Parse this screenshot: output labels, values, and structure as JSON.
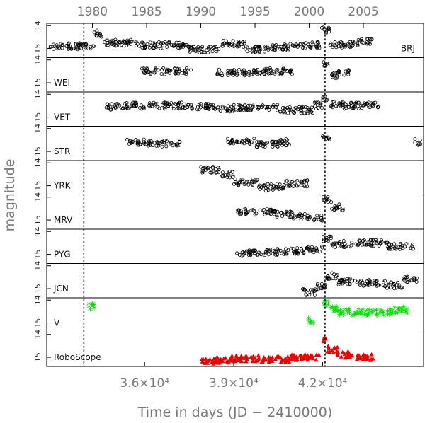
{
  "chart_data": {
    "type": "scatter",
    "xlabel": "Time in days (JD − 2410000)",
    "ylabel": "magnitude",
    "xlim": [
      32700,
      45400
    ],
    "top_axis_ticks": [
      {
        "label": "1980",
        "jd": 34239
      },
      {
        "label": "1985",
        "jd": 36066
      },
      {
        "label": "1990",
        "jd": 37892
      },
      {
        "label": "1995",
        "jd": 39719
      },
      {
        "label": "2000",
        "jd": 41545
      },
      {
        "label": "2005",
        "jd": 43372
      }
    ],
    "bottom_axis_ticks": [
      {
        "label": "3.6×10⁴",
        "value": 36000
      },
      {
        "label": "3.9×10⁴",
        "value": 39000
      },
      {
        "label": "4.2×10⁴",
        "value": 42000
      }
    ],
    "reference_lines_jd": [
      33950,
      42080
    ],
    "panel_ylim": [
      15.4,
      13.9
    ],
    "panels": [
      {
        "label": "BRJ",
        "label_pos": "right",
        "ytick_labels": [
          "14",
          "15"
        ],
        "marker": "circle",
        "color": "#000000",
        "segments": [
          [
            32800,
            34300,
            14.9
          ],
          [
            34300,
            34600,
            14.35
          ],
          [
            34600,
            35800,
            14.75
          ],
          [
            35800,
            36500,
            14.85
          ],
          [
            36500,
            37500,
            14.85
          ],
          [
            37500,
            38500,
            15.05
          ],
          [
            38500,
            39400,
            14.8
          ],
          [
            39400,
            40200,
            15.05
          ],
          [
            40200,
            40900,
            14.95
          ],
          [
            40900,
            41900,
            14.85
          ],
          [
            41950,
            42250,
            14.2
          ],
          [
            42250,
            43000,
            14.85
          ],
          [
            43000,
            43300,
            14.75
          ],
          [
            43300,
            43700,
            14.7
          ]
        ]
      },
      {
        "label": "WEI",
        "label_pos": "left",
        "ytick_labels": [
          "14",
          "15"
        ],
        "marker": "circle",
        "color": "#000000",
        "segments": [
          [
            35900,
            36900,
            14.5
          ],
          [
            37000,
            37600,
            14.5
          ],
          [
            38400,
            39400,
            14.55
          ],
          [
            39400,
            40000,
            14.55
          ],
          [
            40000,
            41000,
            14.5
          ],
          [
            42000,
            42200,
            14.2
          ],
          [
            42200,
            42500,
            14.7
          ],
          [
            42500,
            42900,
            14.55
          ]
        ]
      },
      {
        "label": "VET",
        "label_pos": "left",
        "ytick_labels": [
          "14",
          "15"
        ],
        "marker": "circle",
        "color": "#000000",
        "segments": [
          [
            34700,
            35300,
            14.55
          ],
          [
            35300,
            37500,
            14.5
          ],
          [
            37500,
            38300,
            14.55
          ],
          [
            38300,
            39000,
            14.65
          ],
          [
            39000,
            40500,
            14.6
          ],
          [
            40500,
            41700,
            14.7
          ],
          [
            41700,
            42000,
            14.5
          ],
          [
            42000,
            42200,
            14.15
          ],
          [
            42200,
            42700,
            14.45
          ],
          [
            42700,
            43400,
            14.5
          ],
          [
            43400,
            43900,
            14.45
          ]
        ]
      },
      {
        "label": "STR",
        "label_pos": "left",
        "ytick_labels": [
          "14",
          "15"
        ],
        "marker": "circle",
        "color": "#000000",
        "segments": [
          [
            35400,
            36100,
            14.6
          ],
          [
            36100,
            37200,
            14.65
          ],
          [
            38800,
            39700,
            14.55
          ],
          [
            39700,
            40500,
            14.7
          ],
          [
            40500,
            41000,
            14.6
          ],
          [
            42000,
            42300,
            14.35
          ],
          [
            45100,
            45300,
            14.6
          ]
        ]
      },
      {
        "label": "YRK",
        "label_pos": "left",
        "ytick_labels": [
          "14",
          "15"
        ],
        "marker": "circle",
        "color": "#000000",
        "segments": [
          [
            37900,
            38600,
            14.3
          ],
          [
            38600,
            39000,
            14.5
          ],
          [
            39000,
            39800,
            14.85
          ],
          [
            39800,
            40100,
            15.1
          ],
          [
            40100,
            40700,
            15.05
          ],
          [
            40700,
            41500,
            14.9
          ]
        ]
      },
      {
        "label": "MRV",
        "label_pos": "left",
        "ytick_labels": [
          "14",
          "15"
        ],
        "marker": "circle",
        "color": "#000000",
        "segments": [
          [
            39100,
            39700,
            14.6
          ],
          [
            39700,
            40400,
            14.65
          ],
          [
            40400,
            41000,
            14.75
          ],
          [
            41000,
            41600,
            14.85
          ],
          [
            41700,
            42000,
            14.9
          ],
          [
            42000,
            42300,
            14.1
          ],
          [
            42300,
            42700,
            14.45
          ]
        ]
      },
      {
        "label": "PYG",
        "label_pos": "left",
        "ytick_labels": [
          "14",
          "15"
        ],
        "marker": "circle",
        "color": "#000000",
        "segments": [
          [
            39100,
            39700,
            14.95
          ],
          [
            39700,
            40500,
            14.9
          ],
          [
            40500,
            41500,
            14.85
          ],
          [
            41500,
            42000,
            14.8
          ],
          [
            42000,
            42300,
            14.35
          ],
          [
            42300,
            43000,
            14.55
          ],
          [
            43000,
            44200,
            14.5
          ],
          [
            44200,
            45100,
            14.65
          ]
        ]
      },
      {
        "label": "JCN",
        "label_pos": "left",
        "ytick_labels": [
          "14",
          "15"
        ],
        "marker": "circle",
        "color": "#000000",
        "segments": [
          [
            41300,
            41800,
            15.15
          ],
          [
            41800,
            42100,
            14.9
          ],
          [
            42100,
            42500,
            14.45
          ],
          [
            42500,
            43200,
            14.7
          ],
          [
            43200,
            44100,
            14.75
          ],
          [
            44100,
            44700,
            14.85
          ],
          [
            44700,
            45200,
            14.6
          ]
        ]
      },
      {
        "label": "V",
        "label_pos": "left",
        "ytick_labels": [
          "14",
          "15"
        ],
        "marker": "star",
        "color": "#00dd00",
        "segments": [
          [
            34100,
            34350,
            14.35
          ],
          [
            41500,
            41700,
            14.95
          ],
          [
            42000,
            42200,
            14.2
          ],
          [
            42200,
            42500,
            14.45
          ],
          [
            42500,
            43200,
            14.6
          ],
          [
            43200,
            44400,
            14.6
          ],
          [
            44400,
            44900,
            14.5
          ]
        ]
      },
      {
        "label": "RoboScope",
        "label_pos": "left",
        "ytick_labels": [
          "14",
          "15"
        ],
        "marker": "triangle",
        "color": "#ee0000",
        "segments": [
          [
            37900,
            38900,
            15.15
          ],
          [
            38900,
            39900,
            15.05
          ],
          [
            39900,
            40900,
            15.1
          ],
          [
            40900,
            41900,
            15.0
          ],
          [
            42020,
            42150,
            14.25
          ],
          [
            42150,
            42500,
            14.65
          ],
          [
            42500,
            42900,
            14.9
          ],
          [
            42900,
            43700,
            15.0
          ]
        ]
      }
    ]
  }
}
